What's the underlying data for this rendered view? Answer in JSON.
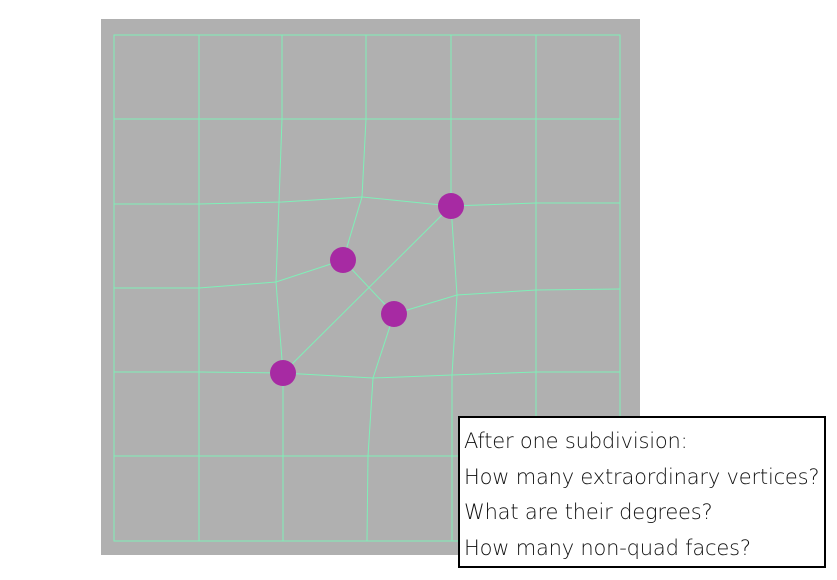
{
  "colors": {
    "panel_background": "#b0b0b0",
    "edge_color": "#7ff0b8",
    "vertex_highlight": "#a72aa3",
    "box_border": "#000000"
  },
  "questions": {
    "title": "After one subdivision:",
    "items": [
      "How many extraordinary vertices?",
      "What are their degrees?",
      "How many non-quad faces?"
    ]
  },
  "mesh": {
    "highlighted_vertex_count": 4
  }
}
